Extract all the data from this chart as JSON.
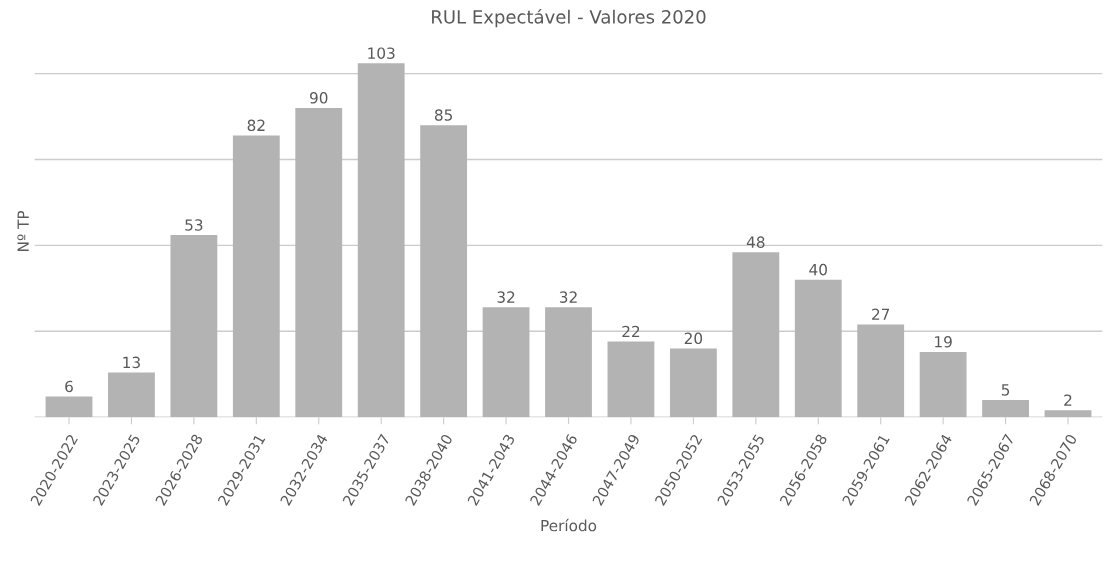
{
  "chart_data": {
    "type": "bar",
    "title": "RUL Expectável - Valores 2020",
    "xlabel": "Período",
    "ylabel": "Nº TP",
    "categories": [
      "2020-2022",
      "2023-2025",
      "2026-2028",
      "2029-2031",
      "2032-2034",
      "2035-2037",
      "2038-2040",
      "2041-2043",
      "2044-2046",
      "2047-2049",
      "2050-2052",
      "2053-2055",
      "2056-2058",
      "2059-2061",
      "2062-2064",
      "2065-2067",
      "2068-2070"
    ],
    "values": [
      6,
      13,
      53,
      82,
      90,
      103,
      85,
      32,
      32,
      22,
      20,
      48,
      40,
      27,
      19,
      5,
      2
    ],
    "color": "#b3b3b3",
    "yticks": [
      {
        "value": 0,
        "label": null
      },
      {
        "value": 25,
        "label": null
      },
      {
        "value": 50,
        "label": null
      },
      {
        "value": 75,
        "label": null
      },
      {
        "value": 100,
        "label": null
      }
    ],
    "tick_labels": "x",
    "grid": "y",
    "data_labels": true
  }
}
